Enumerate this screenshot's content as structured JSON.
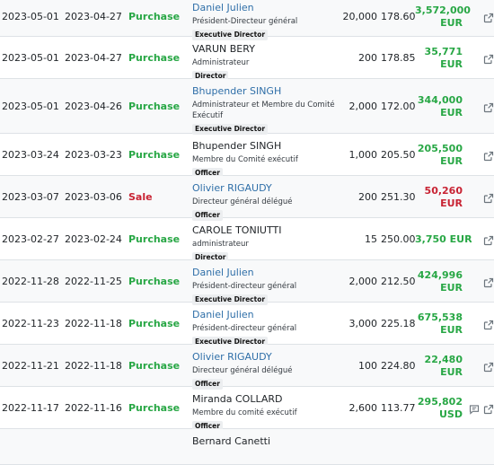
{
  "rows": [
    {
      "filed": "2023-05-01",
      "trade": "2023-04-27",
      "type": "Purchase",
      "name": "Daniel Julien",
      "name_linked": true,
      "title": "Président-Directeur général",
      "title2": "",
      "role": "Executive Director",
      "shares": "20,000",
      "price": "178.60",
      "value": "3,572,000",
      "currency": "EUR",
      "value_one_line": false,
      "comment_icon": false
    },
    {
      "filed": "2023-05-01",
      "trade": "2023-04-27",
      "type": "Purchase",
      "name": "VARUN BERY",
      "name_linked": false,
      "title": "Administrateur",
      "title2": "",
      "role": "Director",
      "shares": "200",
      "price": "178.85",
      "value": "35,771",
      "currency": "EUR",
      "value_one_line": false,
      "comment_icon": false
    },
    {
      "filed": "2023-05-01",
      "trade": "2023-04-26",
      "type": "Purchase",
      "name": "Bhupender SINGH",
      "name_linked": true,
      "title": "Administrateur et Membre du Comité",
      "title2": "Exécutif",
      "role": "Executive Director",
      "shares": "2,000",
      "price": "172.00",
      "value": "344,000",
      "currency": "EUR",
      "value_one_line": false,
      "comment_icon": false
    },
    {
      "filed": "2023-03-24",
      "trade": "2023-03-23",
      "type": "Purchase",
      "name": "Bhupender SINGH",
      "name_linked": false,
      "title": "Membre du Comité exécutif",
      "title2": "",
      "role": "Officer",
      "shares": "1,000",
      "price": "205.50",
      "value": "205,500",
      "currency": "EUR",
      "value_one_line": false,
      "comment_icon": false
    },
    {
      "filed": "2023-03-07",
      "trade": "2023-03-06",
      "type": "Sale",
      "name": "Olivier RIGAUDY",
      "name_linked": true,
      "title": "Directeur général délégué",
      "title2": "",
      "role": "Officer",
      "shares": "200",
      "price": "251.30",
      "value": "50,260",
      "currency": "EUR",
      "value_one_line": false,
      "comment_icon": false
    },
    {
      "filed": "2023-02-27",
      "trade": "2023-02-24",
      "type": "Purchase",
      "name": "CAROLE TONIUTTI",
      "name_linked": false,
      "title": "administrateur",
      "title2": "",
      "role": "Director",
      "shares": "15",
      "price": "250.00",
      "value": "3,750",
      "currency": "EUR",
      "value_one_line": true,
      "comment_icon": false
    },
    {
      "filed": "2022-11-28",
      "trade": "2022-11-25",
      "type": "Purchase",
      "name": "Daniel Julien",
      "name_linked": true,
      "title": "Président-directeur général",
      "title2": "",
      "role": "Executive Director",
      "shares": "2,000",
      "price": "212.50",
      "value": "424,996",
      "currency": "EUR",
      "value_one_line": false,
      "comment_icon": false
    },
    {
      "filed": "2022-11-23",
      "trade": "2022-11-18",
      "type": "Purchase",
      "name": "Daniel Julien",
      "name_linked": true,
      "title": "Président-directeur général",
      "title2": "",
      "role": "Executive Director",
      "shares": "3,000",
      "price": "225.18",
      "value": "675,538",
      "currency": "EUR",
      "value_one_line": false,
      "comment_icon": false
    },
    {
      "filed": "2022-11-21",
      "trade": "2022-11-18",
      "type": "Purchase",
      "name": "Olivier RIGAUDY",
      "name_linked": true,
      "title": "Directeur général délégué",
      "title2": "",
      "role": "Officer",
      "shares": "100",
      "price": "224.80",
      "value": "22,480",
      "currency": "EUR",
      "value_one_line": false,
      "comment_icon": false
    },
    {
      "filed": "2022-11-17",
      "trade": "2022-11-16",
      "type": "Purchase",
      "name": "Miranda COLLARD",
      "name_linked": false,
      "title": "Membre du comité exécutif",
      "title2": "",
      "role": "Officer",
      "shares": "2,600",
      "price": "113.77",
      "value": "295,802",
      "currency": "USD",
      "value_one_line": false,
      "comment_icon": true
    },
    {
      "filed": "",
      "trade": "",
      "type": "",
      "name": "Bernard Canetti",
      "name_linked": false,
      "title": "",
      "title2": "",
      "role": "",
      "shares": "",
      "price": "",
      "value": "",
      "currency": "",
      "value_one_line": false,
      "comment_icon": false
    }
  ],
  "colors": {
    "purchase": "#28a745",
    "sale": "#c82333",
    "link": "#2f6fa8"
  },
  "icons": {
    "external": "external-link-icon",
    "comment": "comment-icon"
  }
}
